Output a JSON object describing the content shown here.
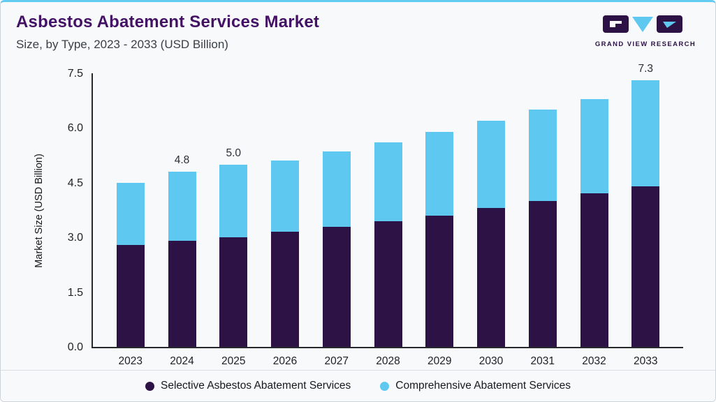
{
  "accent_colors": {
    "top_border": "#62cbf2",
    "background": "#f7f9fb"
  },
  "header": {
    "title": "Asbestos Abatement Services Market",
    "subtitle": "Size, by Type, 2023 - 2033 (USD Billion)"
  },
  "logo": {
    "text": "GRAND VIEW RESEARCH"
  },
  "chart_data": {
    "type": "bar",
    "stacked": true,
    "title": "Asbestos Abatement Services Market Size, by Type, 2023 - 2033 (USD Billion)",
    "ylabel": "Market Size (USD Billion)",
    "ylim": [
      0,
      7.5
    ],
    "yticks": [
      "0.0",
      "1.5",
      "3.0",
      "4.5",
      "6.0",
      "7.5"
    ],
    "grid": false,
    "legend_position": "bottom",
    "categories": [
      "2023",
      "2024",
      "2025",
      "2026",
      "2027",
      "2028",
      "2029",
      "2030",
      "2031",
      "2032",
      "2033"
    ],
    "series": [
      {
        "name": "Selective Asbestos Abatement Services",
        "color": "#2d1245",
        "values": [
          2.8,
          2.9,
          3.0,
          3.15,
          3.3,
          3.45,
          3.6,
          3.8,
          4.0,
          4.2,
          4.4
        ]
      },
      {
        "name": "Comprehensive Abatement Services",
        "color": "#5ec8f0",
        "values": [
          1.7,
          1.9,
          2.0,
          1.95,
          2.05,
          2.15,
          2.3,
          2.4,
          2.5,
          2.6,
          2.9
        ]
      }
    ],
    "totals": [
      4.5,
      4.8,
      5.0,
      5.1,
      5.35,
      5.6,
      5.9,
      6.2,
      6.5,
      6.8,
      7.3
    ],
    "bar_labels": [
      "",
      "4.8",
      "5.0",
      "",
      "",
      "",
      "",
      "",
      "",
      "",
      "7.3"
    ]
  }
}
